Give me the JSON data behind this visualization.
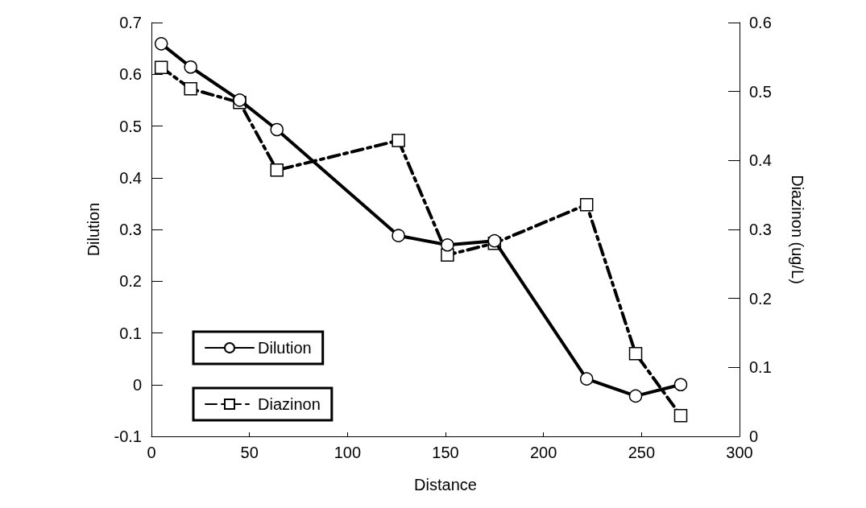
{
  "chart_data": {
    "type": "line",
    "xlabel": "Distance",
    "ylabel": "Dilution",
    "y2label": "Diazinon (ug/L)",
    "xlim": [
      0,
      300
    ],
    "xticks": [
      0,
      50,
      100,
      150,
      200,
      250,
      300
    ],
    "ylim": [
      -0.1,
      0.7
    ],
    "yticks": [
      -0.1,
      0,
      0.1,
      0.2,
      0.3,
      0.4,
      0.5,
      0.6,
      0.7
    ],
    "y2lim": [
      0,
      0.6
    ],
    "y2ticks": [
      0,
      0.1,
      0.2,
      0.3,
      0.4,
      0.5,
      0.6
    ],
    "grid": false,
    "legend": "bottom left",
    "series": [
      {
        "name": "Dilution",
        "color": "#000000",
        "marker": "circle",
        "line_style": "solid",
        "x": [
          5,
          20,
          45,
          64,
          126,
          151,
          175,
          222,
          247,
          270
        ],
        "values": [
          0.659,
          0.614,
          0.55,
          0.493,
          0.288,
          0.27,
          0.278,
          0.011,
          -0.022,
          0
        ]
      },
      {
        "name": "Diazinon",
        "color": "#000000",
        "marker": "square",
        "line_style": "dashdot",
        "axis": "y2",
        "x": [
          5,
          20,
          45,
          64,
          126,
          151,
          175,
          222,
          247,
          270
        ],
        "values": [
          0.535,
          0.504,
          0.484,
          0.386,
          0.429,
          0.263,
          0.28,
          0.336,
          0.12,
          0.03
        ]
      }
    ]
  }
}
